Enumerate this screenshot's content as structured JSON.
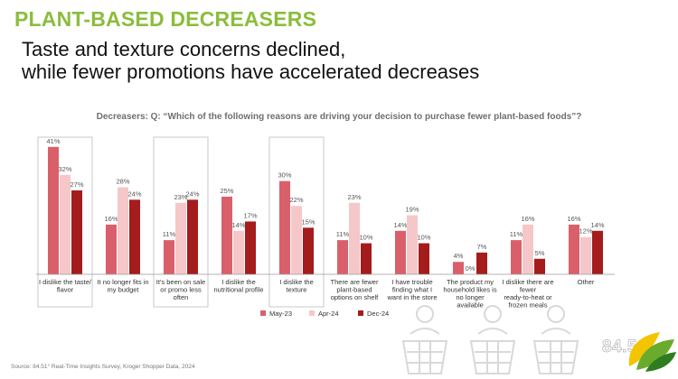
{
  "kicker": "PLANT-BASED DECREASERS",
  "headline": {
    "line1": "Taste and texture concerns declined,",
    "line2": "while fewer promotions have accelerated decreases"
  },
  "question": "Decreasers: Q: “Which of the following reasons are driving your decision to purchase fewer plant-based foods”?",
  "source": "Source: 84.51° Real-Time Insights Survey, Kroger Shopper Data, 2024",
  "brand": {
    "text": "84.51",
    "degree": "°"
  },
  "colors": {
    "accent": "#8bbd3c",
    "may23": "#d9606a",
    "apr24": "#f5c7c9",
    "dec24": "#a51c1c"
  },
  "icons": [
    "shopping-basket-icon",
    "shopping-basket-icon",
    "shopping-basket-icon",
    "leaf-logo-icon"
  ],
  "chart_data": {
    "type": "bar",
    "categories": [
      [
        "I dislike the taste/",
        "flavor"
      ],
      [
        "It no longer fits in",
        "my budget"
      ],
      [
        "It's been on sale",
        "or promo less",
        "often"
      ],
      [
        "I dislike the",
        "nutritional profile"
      ],
      [
        "I dislike the",
        "texture"
      ],
      [
        "There are fewer",
        "plant-based",
        "options on shelf"
      ],
      [
        "I have trouble",
        "finding what I",
        "want in the store"
      ],
      [
        "The product my",
        "household likes is",
        "no longer",
        "available"
      ],
      [
        "I dislike there are",
        "fewer",
        "ready-to-heat or",
        "frozen meals"
      ],
      [
        "Other"
      ]
    ],
    "series": [
      {
        "name": "May-23",
        "color": "#d9606a",
        "values": [
          41,
          16,
          11,
          25,
          30,
          11,
          14,
          4,
          11,
          16
        ]
      },
      {
        "name": "Apr-24",
        "color": "#f5c7c9",
        "values": [
          32,
          28,
          23,
          14,
          22,
          23,
          19,
          0,
          16,
          12
        ]
      },
      {
        "name": "Dec-24",
        "color": "#a51c1c",
        "values": [
          27,
          24,
          24,
          17,
          15,
          10,
          10,
          7,
          5,
          14
        ]
      }
    ],
    "value_suffix": "%",
    "highlighted_categories": [
      0,
      2,
      4
    ],
    "ylim": [
      0,
      45
    ],
    "grid": false,
    "legend_position": "bottom-center"
  }
}
